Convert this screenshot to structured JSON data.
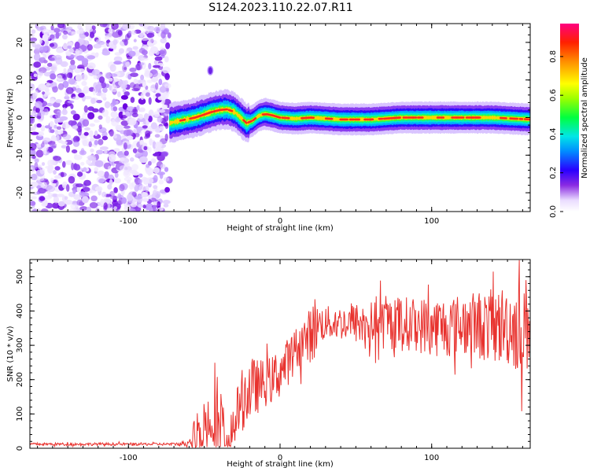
{
  "figure_title": "S124.2023.110.22.07.R11",
  "chart_data": [
    {
      "type": "heatmap",
      "title": "S124.2023.110.22.07.R11",
      "xlabel": "Height of straight line (km)",
      "ylabel": "Frequency (Hz)",
      "xlim": [
        -165,
        165
      ],
      "ylim": [
        -25,
        25
      ],
      "xticks": [
        -100,
        0,
        100
      ],
      "yticks": [
        -20,
        -10,
        0,
        10,
        20
      ],
      "noise_region_x": [
        -165,
        -73
      ],
      "ridge": {
        "x": [
          -73,
          -68,
          -62,
          -56,
          -50,
          -45,
          -40,
          -35,
          -30,
          -26,
          -22,
          -18,
          -14,
          -10,
          -5,
          0,
          10,
          20,
          40,
          60,
          80,
          100,
          120,
          140,
          165
        ],
        "freq": [
          -1.5,
          -1.0,
          -0.5,
          0.0,
          0.8,
          1.5,
          2.0,
          2.2,
          1.5,
          0.0,
          -1.5,
          -0.8,
          0.5,
          1.0,
          0.6,
          0.0,
          -0.3,
          0.0,
          -0.5,
          -0.5,
          0.0,
          0.0,
          0.0,
          0.0,
          -0.5
        ]
      },
      "isolated_blob": {
        "x": -46,
        "freq": 12.5
      },
      "colorbar": {
        "label": "Normalized spectral amplitude",
        "ticks": [
          "0.0",
          "0.2",
          "0.4",
          "0.6",
          "0.8"
        ],
        "tick_values": [
          0.0,
          0.2,
          0.4,
          0.6,
          0.8
        ],
        "range": [
          0.0,
          0.97
        ]
      }
    },
    {
      "type": "line",
      "xlabel": "Height of straight line (km)",
      "ylabel": "SNR (10 * v/v)",
      "xlim": [
        -165,
        165
      ],
      "ylim": [
        0,
        550
      ],
      "xticks": [
        -100,
        0,
        100
      ],
      "yticks": [
        0,
        100,
        200,
        300,
        400,
        500
      ],
      "series": [
        {
          "name": "SNR",
          "color": "#e8322e",
          "envelope": {
            "x": [
              -165,
              -140,
              -100,
              -70,
              -60,
              -55,
              -50,
              -45,
              -40,
              -35,
              -30,
              -25,
              -20,
              -15,
              -10,
              -5,
              0,
              5,
              10,
              15,
              20,
              22,
              25,
              30,
              40,
              50,
              60,
              70,
              80,
              90,
              100,
              110,
              120,
              130,
              140,
              150,
              160,
              165
            ],
            "base": [
              12,
              12,
              12,
              12,
              14,
              40,
              70,
              90,
              60,
              30,
              80,
              140,
              170,
              180,
              190,
              200,
              225,
              250,
              290,
              310,
              330,
              350,
              360,
              365,
              365,
              365,
              360,
              365,
              365,
              360,
              355,
              355,
              360,
              360,
              355,
              360,
              350,
              370
            ],
            "amp": [
              4,
              4,
              4,
              4,
              10,
              80,
              90,
              80,
              130,
              100,
              70,
              90,
              100,
              80,
              70,
              70,
              80,
              70,
              60,
              70,
              80,
              110,
              60,
              50,
              50,
              60,
              70,
              80,
              80,
              80,
              90,
              90,
              90,
              100,
              110,
              120,
              140,
              150
            ]
          }
        }
      ]
    }
  ]
}
